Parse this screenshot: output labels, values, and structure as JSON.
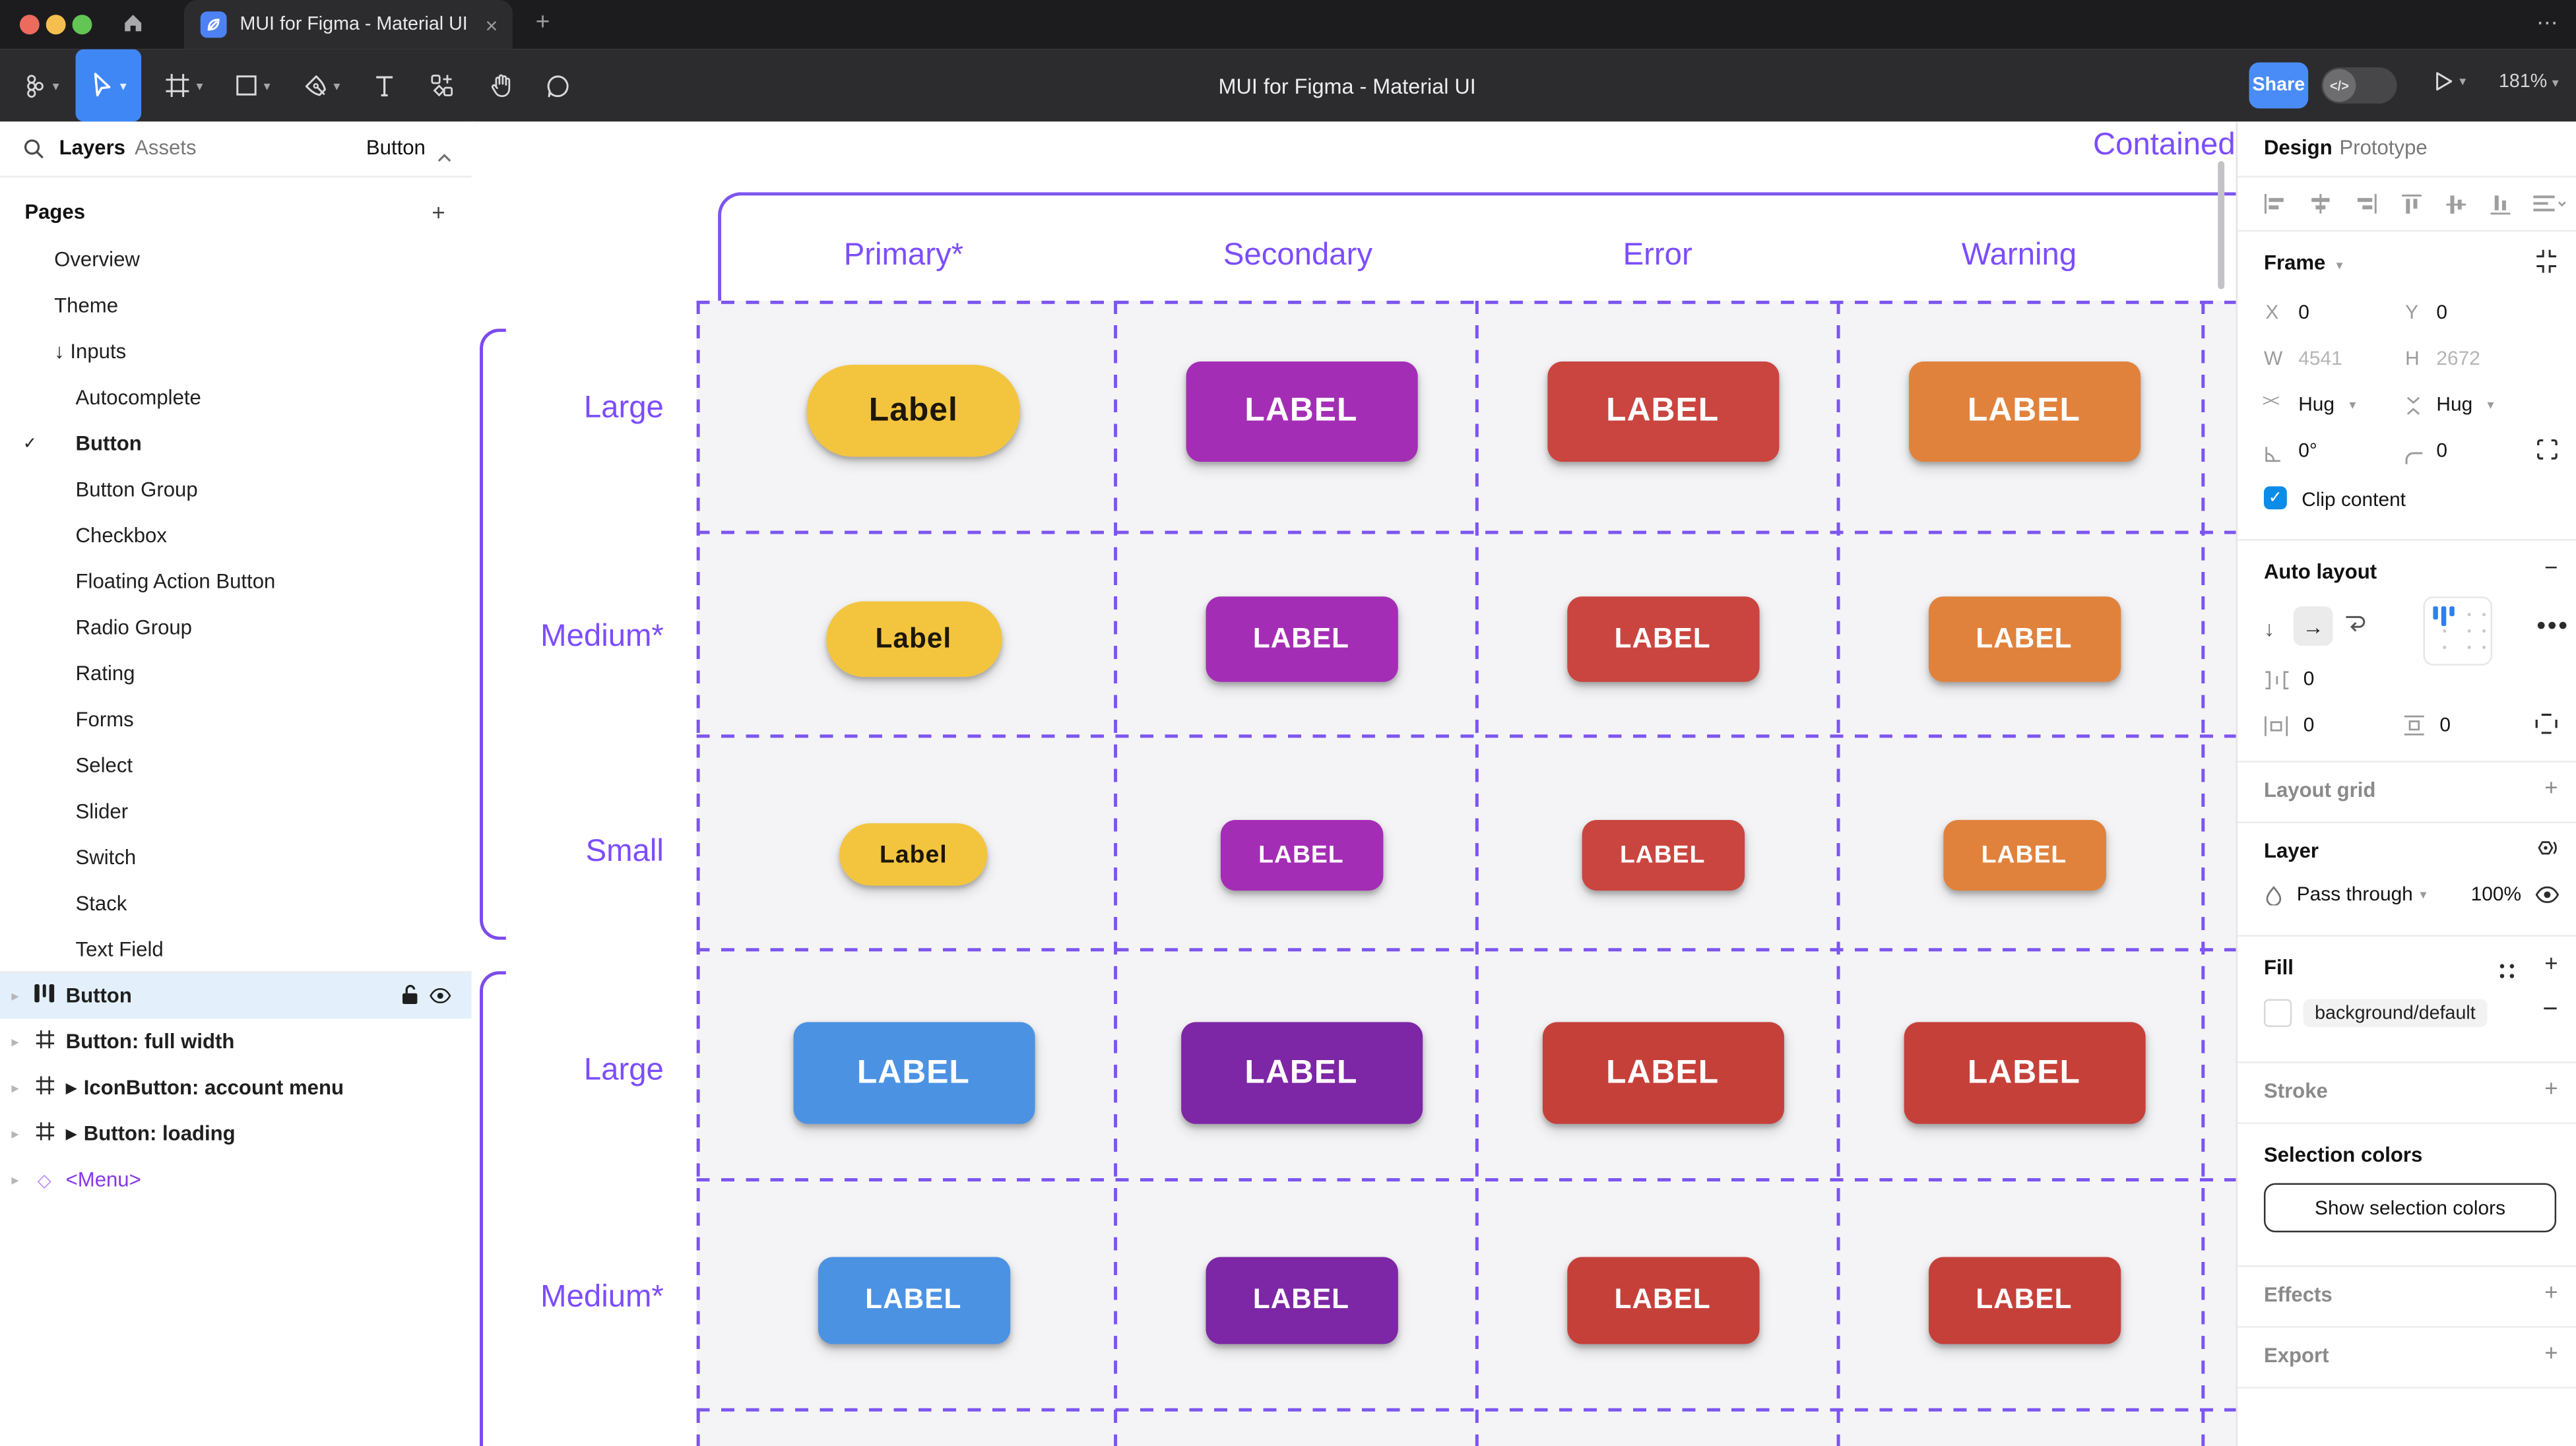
{
  "window": {
    "tab_title": "MUI for Figma - Material UI",
    "toolbar_title": "MUI for Figma - Material UI",
    "share_label": "Share",
    "zoom_level": "181%",
    "new_tab": "+",
    "close_tab": "×",
    "overflow_menu": "⋯",
    "dev_toggle_glyph": "</>"
  },
  "left_panel": {
    "tabs": {
      "layers": "Layers",
      "assets": "Assets"
    },
    "page_selector": "Button",
    "pages_header": "Pages",
    "pages": [
      {
        "label": "Overview",
        "indent": 1,
        "checked": false
      },
      {
        "label": "Theme",
        "indent": 1,
        "checked": false
      },
      {
        "label": "↓ Inputs",
        "indent": 1,
        "checked": false
      },
      {
        "label": "Autocomplete",
        "indent": 2,
        "checked": false
      },
      {
        "label": "Button",
        "indent": 2,
        "checked": true
      },
      {
        "label": "Button Group",
        "indent": 2,
        "checked": false
      },
      {
        "label": "Checkbox",
        "indent": 2,
        "checked": false
      },
      {
        "label": "Floating Action Button",
        "indent": 2,
        "checked": false
      },
      {
        "label": "Radio Group",
        "indent": 2,
        "checked": false
      },
      {
        "label": "Rating",
        "indent": 2,
        "checked": false
      },
      {
        "label": "Forms",
        "indent": 2,
        "checked": false
      },
      {
        "label": "Select",
        "indent": 2,
        "checked": false
      },
      {
        "label": "Slider",
        "indent": 2,
        "checked": false
      },
      {
        "label": "Switch",
        "indent": 2,
        "checked": false
      },
      {
        "label": "Stack",
        "indent": 2,
        "checked": false
      },
      {
        "label": "Text Field",
        "indent": 2,
        "checked": false
      }
    ],
    "layers": [
      {
        "label": "Button",
        "icon": "autolayout",
        "selected": true,
        "play": false,
        "purple": false
      },
      {
        "label": "Button: full width",
        "icon": "frame",
        "selected": false,
        "play": false,
        "purple": false
      },
      {
        "label": "IconButton: account menu",
        "icon": "frame",
        "selected": false,
        "play": true,
        "purple": false
      },
      {
        "label": "Button: loading",
        "icon": "frame",
        "selected": false,
        "play": true,
        "purple": false
      },
      {
        "label": "<Menu>",
        "icon": "diamond",
        "selected": false,
        "play": false,
        "purple": true
      }
    ]
  },
  "canvas": {
    "frame_label": "Contained",
    "accent_color": "#7c4dff",
    "columns": [
      "Primary*",
      "Secondary",
      "Error",
      "Warning"
    ],
    "rows": [
      {
        "label": "Large",
        "group": 1,
        "cells": [
          {
            "text": "Label",
            "bg": "#f3c53f",
            "fg": "#1e1708",
            "pill": true
          },
          {
            "text": "LABEL",
            "bg": "#a42db6",
            "fg": "#ffffff",
            "pill": false
          },
          {
            "text": "LABEL",
            "bg": "#ca453f",
            "fg": "#ffffff",
            "pill": false
          },
          {
            "text": "LABEL",
            "bg": "#e1823c",
            "fg": "#ffffff",
            "pill": false
          }
        ]
      },
      {
        "label": "Medium*",
        "group": 1,
        "cells": [
          {
            "text": "Label",
            "bg": "#f3c53f",
            "fg": "#1e1708",
            "pill": true
          },
          {
            "text": "LABEL",
            "bg": "#a42db6",
            "fg": "#ffffff",
            "pill": false
          },
          {
            "text": "LABEL",
            "bg": "#ca453f",
            "fg": "#ffffff",
            "pill": false
          },
          {
            "text": "LABEL",
            "bg": "#e1823c",
            "fg": "#ffffff",
            "pill": false
          }
        ]
      },
      {
        "label": "Small",
        "group": 1,
        "cells": [
          {
            "text": "Label",
            "bg": "#f3c53f",
            "fg": "#1e1708",
            "pill": true
          },
          {
            "text": "LABEL",
            "bg": "#a42db6",
            "fg": "#ffffff",
            "pill": false
          },
          {
            "text": "LABEL",
            "bg": "#ca453f",
            "fg": "#ffffff",
            "pill": false
          },
          {
            "text": "LABEL",
            "bg": "#e1823c",
            "fg": "#ffffff",
            "pill": false
          }
        ]
      },
      {
        "label": "Large",
        "group": 2,
        "cells": [
          {
            "text": "LABEL",
            "bg": "#4b92e3",
            "fg": "#ffffff",
            "pill": false
          },
          {
            "text": "LABEL",
            "bg": "#7d26a6",
            "fg": "#ffffff",
            "pill": false
          },
          {
            "text": "LABEL",
            "bg": "#c6403a",
            "fg": "#ffffff",
            "pill": false
          },
          {
            "text": "LABEL",
            "bg": "#c6403a",
            "fg": "#ffffff",
            "pill": false
          }
        ]
      },
      {
        "label": "Medium*",
        "group": 2,
        "cells": [
          {
            "text": "LABEL",
            "bg": "#4b92e3",
            "fg": "#ffffff",
            "pill": false
          },
          {
            "text": "LABEL",
            "bg": "#7d26a6",
            "fg": "#ffffff",
            "pill": false
          },
          {
            "text": "LABEL",
            "bg": "#c6403a",
            "fg": "#ffffff",
            "pill": false
          },
          {
            "text": "LABEL",
            "bg": "#c6403a",
            "fg": "#ffffff",
            "pill": false
          }
        ]
      }
    ]
  },
  "right_panel": {
    "tabs": {
      "design": "Design",
      "prototype": "Prototype"
    },
    "frame": {
      "title": "Frame",
      "x_label": "X",
      "x_value": "0",
      "y_label": "Y",
      "y_value": "0",
      "w_label": "W",
      "w_value": "4541",
      "h_label": "H",
      "h_value": "2672",
      "h_resize": "Hug",
      "v_resize": "Hug",
      "rotation": "0°",
      "radius": "0",
      "clip_label": "Clip content"
    },
    "auto_layout": {
      "title": "Auto layout",
      "gap": "0",
      "pad_h": "0",
      "pad_v": "0"
    },
    "layout_grid_title": "Layout grid",
    "layer": {
      "title": "Layer",
      "blend_mode": "Pass through",
      "opacity": "100%"
    },
    "fill": {
      "title": "Fill",
      "style_name": "background/default"
    },
    "stroke_title": "Stroke",
    "selection_colors": {
      "title": "Selection colors",
      "button_label": "Show selection colors"
    },
    "effects_title": "Effects",
    "export_title": "Export"
  }
}
